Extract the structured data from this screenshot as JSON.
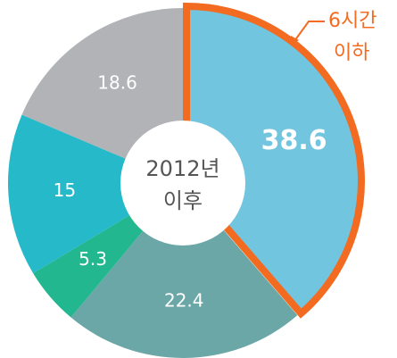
{
  "chart_data": {
    "type": "donut",
    "values": [
      38.6,
      22.4,
      5.3,
      15,
      18.6
    ],
    "colors": [
      "#72c5df",
      "#6ba7a7",
      "#22b78f",
      "#25b9c9",
      "#b1b3b7"
    ],
    "center_label": [
      "2012년",
      "이후"
    ],
    "highlight_index": 0,
    "highlight_color": "#f26b21",
    "annotation": [
      "6시간",
      "이하"
    ]
  }
}
